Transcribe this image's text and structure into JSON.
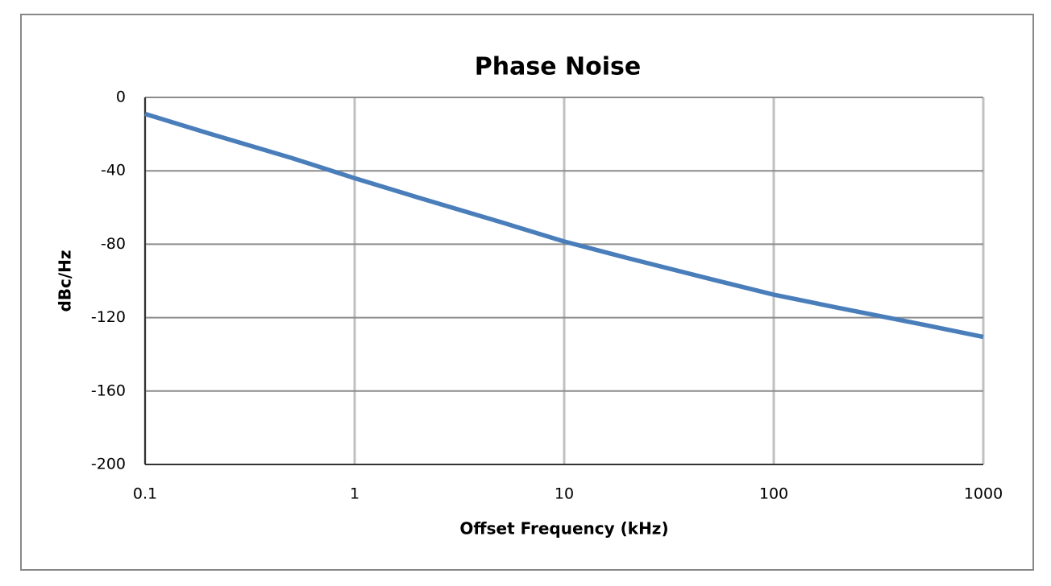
{
  "chart_data": {
    "type": "line",
    "title": "Phase Noise",
    "x_label": "Offset Frequency (kHz)",
    "y_label": "dBc/Hz",
    "x": [
      0.1,
      0.2,
      0.5,
      1,
      2,
      5,
      10,
      20,
      50,
      100,
      200,
      500,
      1000
    ],
    "values": [
      -9,
      -19.5,
      -33,
      -44,
      -54.5,
      -68,
      -78.5,
      -87.5,
      -99,
      -107.5,
      -114.5,
      -123.5,
      -130.5
    ],
    "color": "#4a7ebb",
    "xscale": "log",
    "xlim": [
      0.1,
      1000
    ],
    "xticks": [
      0.1,
      1,
      10,
      100,
      1000
    ],
    "ylim": [
      -200,
      0
    ],
    "yticks": [
      0,
      -40,
      -80,
      -120,
      -160,
      -200
    ],
    "grid": true
  }
}
